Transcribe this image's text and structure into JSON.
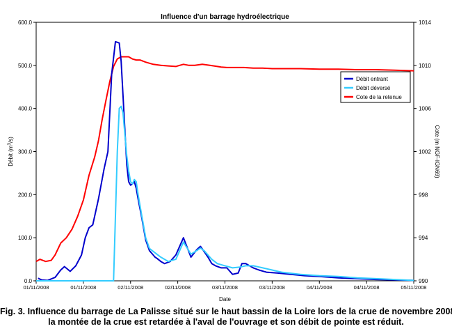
{
  "chart_data": {
    "type": "line",
    "title": "Influence d'un barrage hydroélectrique",
    "xlabel": "Date",
    "ylabel": "Débit (m",
    "ylabel_sup": "3",
    "ylabel_tail": "/s)",
    "y2label": "Cote (m NGF-IGN69)",
    "ylim": [
      0,
      600
    ],
    "y2lim": [
      990,
      1014
    ],
    "yticks": [
      "0.0",
      "100.0",
      "200.0",
      "300.0",
      "400.0",
      "500.0",
      "600.0"
    ],
    "y2ticks": [
      "990",
      "994",
      "998",
      "1002",
      "1006",
      "1010",
      "1014"
    ],
    "xlim": [
      0,
      4
    ],
    "xticks": [
      "01/11/2008",
      "01/11/2008",
      "02/11/2008",
      "02/11/2008",
      "03/11/2008",
      "03/11/2008",
      "04/11/2008",
      "04/11/2008",
      "05/11/2008"
    ],
    "x_unit_note": "fraction of days since 01/11/2008 00:00",
    "grid": false,
    "legend_position": "right",
    "series": [
      {
        "name": "Débit entrant",
        "axis": "left",
        "color": "#0000CC",
        "x": [
          0.02,
          0.06,
          0.12,
          0.2,
          0.26,
          0.3,
          0.36,
          0.42,
          0.48,
          0.52,
          0.56,
          0.6,
          0.66,
          0.72,
          0.76,
          0.8,
          0.84,
          0.88,
          0.9,
          0.92,
          0.94,
          0.96,
          0.98,
          1.0,
          1.02,
          1.04,
          1.06,
          1.08,
          1.12,
          1.16,
          1.2,
          1.24,
          1.26,
          1.28,
          1.32,
          1.36,
          1.42,
          1.48,
          1.56,
          1.64,
          1.7,
          1.74,
          1.78,
          1.82,
          1.86,
          1.9,
          1.96,
          2.02,
          2.08,
          2.14,
          2.18,
          2.22,
          2.26,
          2.3,
          2.36,
          2.44,
          2.56,
          2.7,
          2.84,
          3.0,
          3.2,
          3.4,
          3.6,
          3.8,
          4.0
        ],
        "values": [
          6,
          2,
          1,
          8,
          25,
          33,
          22,
          35,
          60,
          100,
          123,
          130,
          190,
          260,
          300,
          480,
          555,
          552,
          510,
          430,
          350,
          270,
          230,
          222,
          225,
          230,
          215,
          190,
          145,
          95,
          70,
          60,
          55,
          52,
          45,
          40,
          45,
          60,
          100,
          55,
          72,
          80,
          68,
          55,
          40,
          35,
          30,
          30,
          15,
          18,
          40,
          40,
          35,
          30,
          25,
          20,
          18,
          15,
          12,
          10,
          7,
          5,
          3,
          2,
          1
        ]
      },
      {
        "name": "Débit déversé",
        "axis": "left",
        "color": "#33CCFF",
        "x": [
          0.0,
          0.82,
          0.84,
          0.86,
          0.88,
          0.9,
          0.92,
          0.94,
          0.96,
          0.98,
          1.0,
          1.02,
          1.04,
          1.06,
          1.08,
          1.12,
          1.16,
          1.2,
          1.26,
          1.32,
          1.4,
          1.48,
          1.56,
          1.64,
          1.7,
          1.74,
          1.78,
          1.86,
          1.92,
          2.0,
          2.08,
          2.16,
          2.22,
          2.3,
          2.4,
          2.5,
          2.6,
          2.8,
          3.0,
          3.2,
          3.4,
          3.6,
          3.8,
          4.0
        ],
        "values": [
          0,
          0,
          150,
          300,
          400,
          405,
          390,
          340,
          290,
          255,
          230,
          225,
          235,
          230,
          200,
          150,
          100,
          75,
          65,
          55,
          45,
          50,
          90,
          62,
          70,
          76,
          70,
          50,
          40,
          35,
          30,
          32,
          35,
          35,
          30,
          25,
          20,
          15,
          12,
          10,
          7,
          5,
          3,
          1
        ]
      },
      {
        "name": "Cote de la retenue",
        "axis": "right",
        "color": "#FF0000",
        "x": [
          0.0,
          0.04,
          0.1,
          0.16,
          0.2,
          0.26,
          0.32,
          0.38,
          0.44,
          0.5,
          0.56,
          0.62,
          0.66,
          0.7,
          0.74,
          0.78,
          0.82,
          0.86,
          0.9,
          0.94,
          0.98,
          1.02,
          1.06,
          1.1,
          1.16,
          1.24,
          1.32,
          1.4,
          1.48,
          1.52,
          1.56,
          1.62,
          1.68,
          1.76,
          1.84,
          1.92,
          1.96,
          2.02,
          2.1,
          2.2,
          2.3,
          2.4,
          2.5,
          2.6,
          2.8,
          3.0,
          3.2,
          3.4,
          3.6,
          3.8,
          4.0
        ],
        "values": [
          991.8,
          992.0,
          991.8,
          991.9,
          992.4,
          993.5,
          994.0,
          994.8,
          996.0,
          997.5,
          999.8,
          1001.5,
          1003.0,
          1005.0,
          1006.8,
          1008.5,
          1009.9,
          1010.6,
          1010.8,
          1010.8,
          1010.8,
          1010.6,
          1010.5,
          1010.5,
          1010.3,
          1010.1,
          1010.0,
          1009.95,
          1009.9,
          1010.0,
          1010.1,
          1010.0,
          1010.0,
          1010.1,
          1010.0,
          1009.9,
          1009.85,
          1009.8,
          1009.8,
          1009.8,
          1009.75,
          1009.75,
          1009.7,
          1009.7,
          1009.7,
          1009.65,
          1009.65,
          1009.6,
          1009.6,
          1009.55,
          1009.5
        ]
      }
    ]
  },
  "caption": {
    "line1": "Fig. 3. Influence du barrage de La Palisse situé sur le haut bassin de la Loire lors de la crue de novembre 2008:",
    "line2": "la montée de la crue est retardée à l'aval de l'ouvrage et son débit de pointe est réduit."
  }
}
